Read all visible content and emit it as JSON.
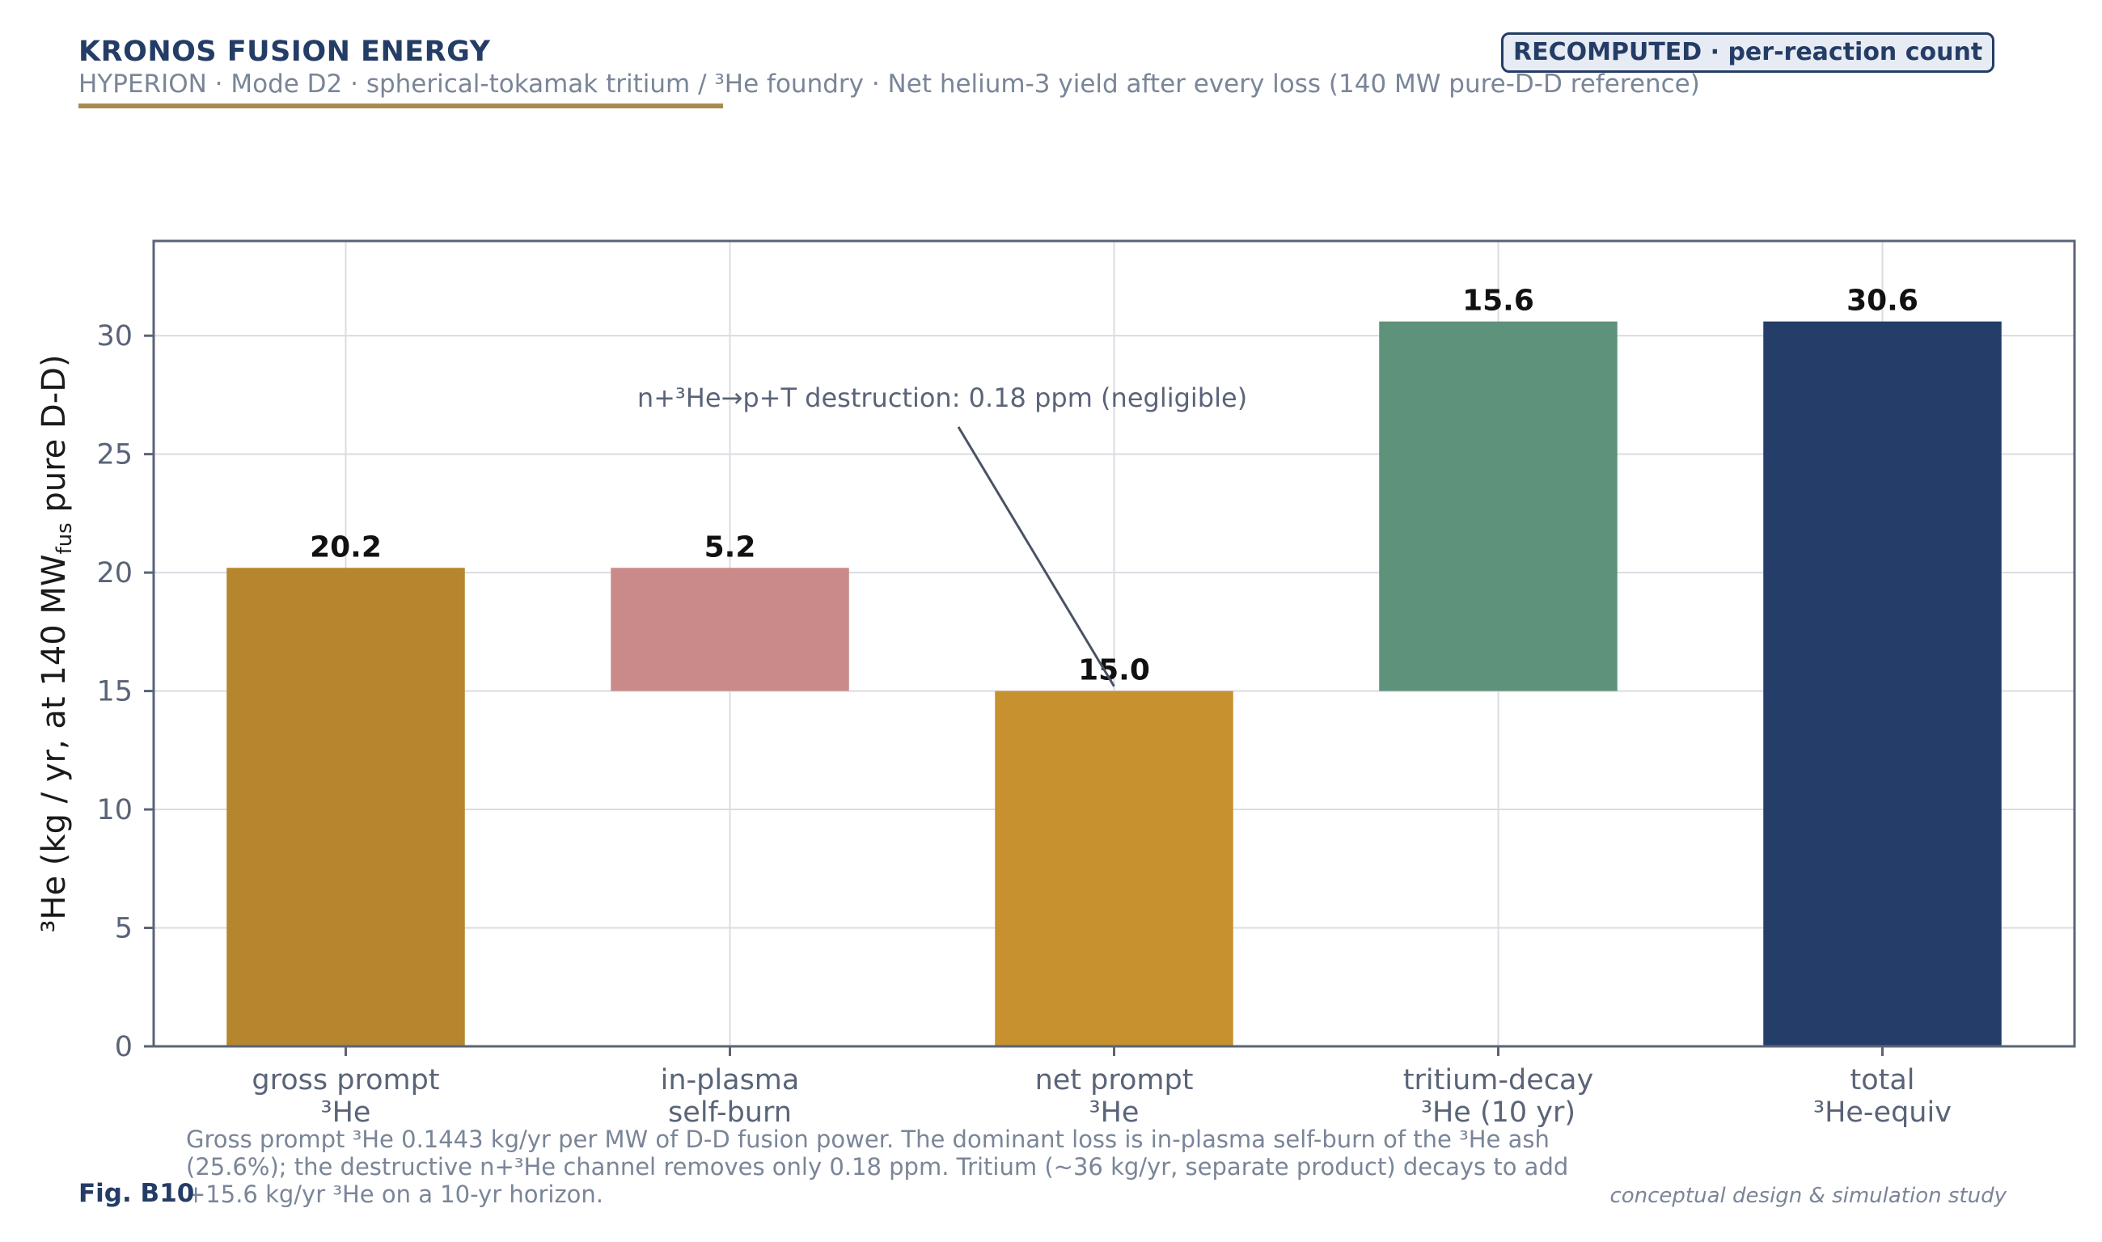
{
  "header": {
    "brand": "KRONOS FUSION ENERGY",
    "subtitle": "HYPERION  ·  Mode D2  ·  spherical-tokamak tritium / ³He foundry   ·   Net helium-3 yield after every loss (140 MW pure-D-D reference)",
    "badge": "RECOMPUTED · per-reaction count"
  },
  "footer": {
    "figure_label": "Fig. B10",
    "caption": "Gross prompt ³He 0.1443 kg/yr per MW of D-D fusion power. The dominant loss is in-plasma self-burn of the ³He ash (25.6%); the destructive n+³He channel removes only 0.18 ppm. Tritium (~36 kg/yr, separate product) decays to add +15.6 kg/yr ³He on a 10-yr horizon.",
    "note": "conceptual design & simulation study"
  },
  "chart_data": {
    "type": "bar",
    "subtype": "waterfall",
    "categories": [
      [
        "gross prompt",
        "³He"
      ],
      [
        "in-plasma",
        "self-burn"
      ],
      [
        "net prompt",
        "³He"
      ],
      [
        "tritium-decay",
        "³He (10 yr)"
      ],
      [
        "total",
        "³He-equiv"
      ]
    ],
    "bars": [
      {
        "bottom": 0,
        "top": 20.2,
        "label": "20.2",
        "color": "#b5862e"
      },
      {
        "bottom": 15.0,
        "top": 20.2,
        "label": "5.2",
        "color": "#c98a89"
      },
      {
        "bottom": 0,
        "top": 15.0,
        "label": "15.0",
        "color": "#c6912e"
      },
      {
        "bottom": 15.0,
        "top": 30.6,
        "label": "15.6",
        "color": "#5e927a"
      },
      {
        "bottom": 0,
        "top": 30.6,
        "label": "30.6",
        "color": "#243d69"
      }
    ],
    "ylabel_main": "³He  (kg / yr, at 140 MW",
    "ylabel_sub": "fus",
    "ylabel_tail": " pure D-D)",
    "ylim": [
      0,
      34
    ],
    "yticks": [
      0,
      5,
      10,
      15,
      20,
      25,
      30
    ],
    "grid": true,
    "annotation": {
      "text": "n+³He→p+T destruction: 0.18 ppm (negligible)",
      "target_category_index": 2,
      "target_y": 15.2
    }
  }
}
